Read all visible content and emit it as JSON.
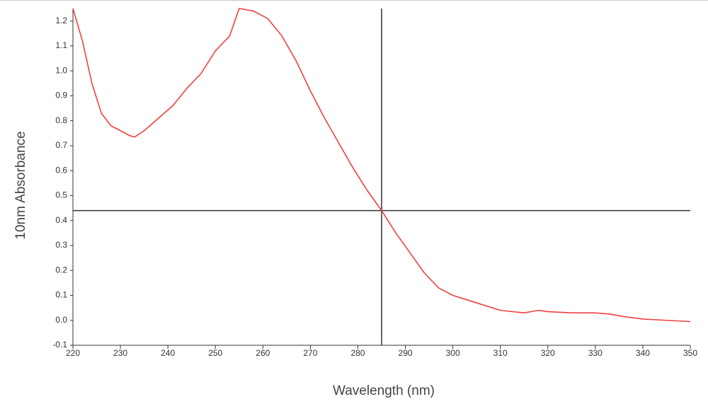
{
  "chart_data": {
    "type": "line",
    "xlabel": "Wavelength (nm)",
    "ylabel": "10nm Absorbance",
    "x": [
      220,
      222,
      224,
      226,
      228,
      230,
      232,
      233,
      235,
      238,
      241,
      244,
      247,
      250,
      253,
      255,
      258,
      261,
      264,
      267,
      270,
      273,
      276,
      279,
      282,
      285,
      288,
      291,
      294,
      297,
      300,
      305,
      310,
      315,
      318,
      320,
      325,
      330,
      333,
      336,
      340,
      345,
      350
    ],
    "series": [
      {
        "color": "#f04040",
        "values": [
          1.25,
          1.12,
          0.95,
          0.83,
          0.78,
          0.76,
          0.74,
          0.735,
          0.76,
          0.81,
          0.86,
          0.93,
          0.99,
          1.08,
          1.14,
          1.25,
          1.24,
          1.21,
          1.14,
          1.04,
          0.92,
          0.81,
          0.71,
          0.61,
          0.52,
          0.44,
          0.35,
          0.27,
          0.19,
          0.13,
          0.1,
          0.07,
          0.04,
          0.03,
          0.04,
          0.035,
          0.03,
          0.03,
          0.025,
          0.015,
          0.005,
          0.0,
          -0.005
        ]
      }
    ],
    "xlim": [
      220,
      350
    ],
    "xticks": [
      220,
      230,
      240,
      250,
      260,
      270,
      280,
      290,
      300,
      310,
      320,
      330,
      340,
      350
    ],
    "ylim": [
      -0.1,
      1.25
    ],
    "yticks": [
      -0.1,
      {
        "value": 0,
        "label": "0.0"
      },
      0.1,
      0.2,
      0.3,
      0.4,
      0.5,
      0.6,
      0.7,
      0.8,
      0.9,
      {
        "value": 1,
        "label": "1.0"
      },
      1.1,
      1.2
    ],
    "crosshair": {
      "x": 285,
      "y": 0.44
    }
  }
}
